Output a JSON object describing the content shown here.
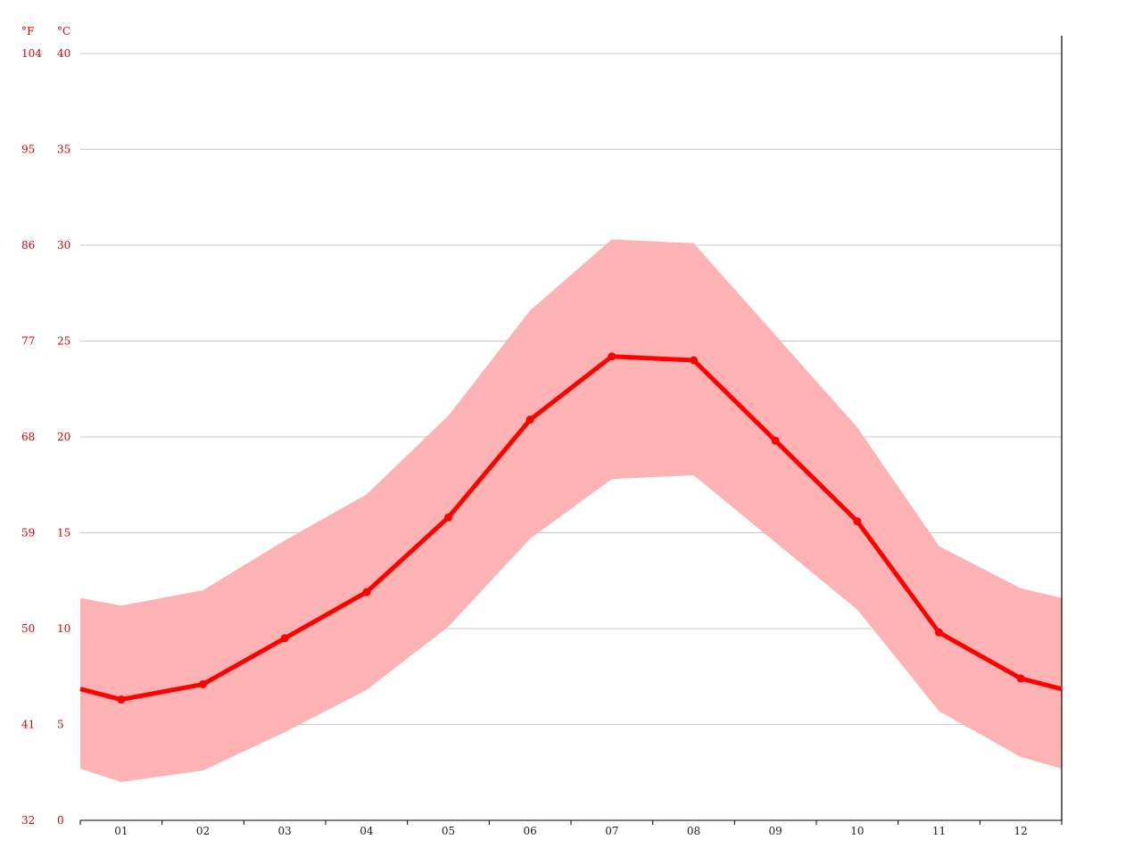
{
  "chart_data": {
    "type": "line",
    "title": "",
    "xlabel": "",
    "ylabel": "",
    "units": {
      "fahrenheit": "°F",
      "celsius": "°C"
    },
    "categories": [
      "01",
      "02",
      "03",
      "04",
      "05",
      "06",
      "07",
      "08",
      "09",
      "10",
      "11",
      "12"
    ],
    "series": [
      {
        "values": [
          6.3,
          7.1,
          9.5,
          11.9,
          15.8,
          20.9,
          24.2,
          24.0,
          19.8,
          15.6,
          9.8,
          7.4
        ]
      }
    ],
    "range_band": {
      "upper": [
        11.2,
        12.0,
        14.6,
        17.0,
        21.1,
        26.6,
        30.3,
        30.1,
        25.3,
        20.5,
        14.3,
        12.1
      ],
      "lower": [
        2.0,
        2.6,
        4.6,
        6.8,
        10.1,
        14.7,
        17.8,
        18.0,
        14.5,
        11.0,
        5.7,
        3.3
      ],
      "edge_upper": 11.6,
      "edge_lower": 2.7
    },
    "y_celsius_ticks": [
      "0",
      "5",
      "10",
      "15",
      "20",
      "25",
      "30",
      "35",
      "40"
    ],
    "y_fahrenheit_ticks": [
      "32",
      "41",
      "50",
      "59",
      "68",
      "77",
      "86",
      "95",
      "104"
    ],
    "ylim": [
      0,
      40
    ],
    "grid": true,
    "legend": "none",
    "colors": {
      "line": "#ff0000",
      "band": "#fdb2b3",
      "grid": "#c8c8c8",
      "axis": "#000000",
      "y_labels": "#e00000",
      "x_labels": "#222222"
    }
  }
}
